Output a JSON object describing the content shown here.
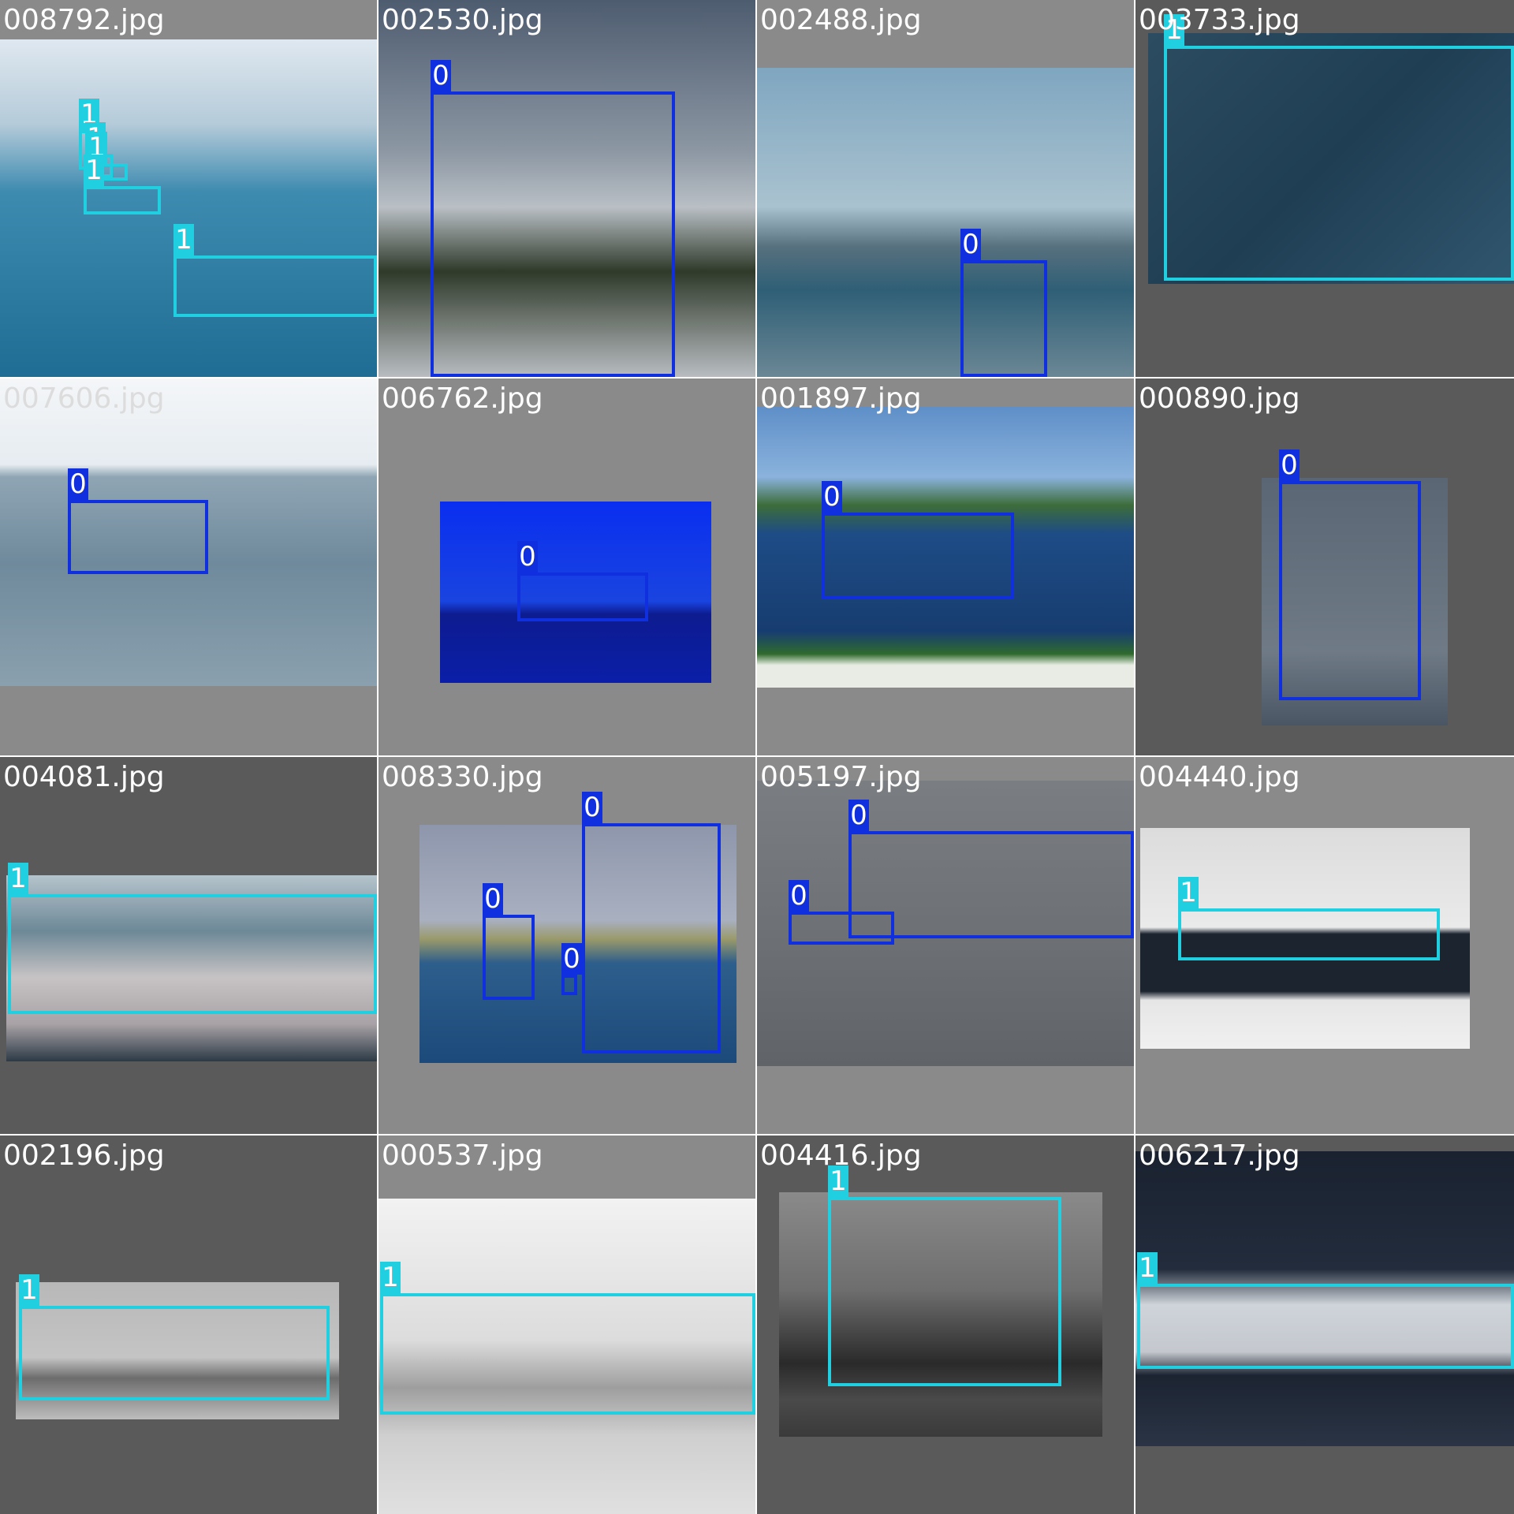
{
  "class_colors": {
    "0": "#1030e0",
    "1": "#20d0e0"
  },
  "tiles": [
    {
      "filename": "008792.jpg",
      "boxes": [
        {
          "cls": "1"
        },
        {
          "cls": "1"
        },
        {
          "cls": "1"
        },
        {
          "cls": "1"
        },
        {
          "cls": "1"
        }
      ]
    },
    {
      "filename": "002530.jpg",
      "boxes": [
        {
          "cls": "0"
        }
      ]
    },
    {
      "filename": "002488.jpg",
      "boxes": [
        {
          "cls": "0"
        }
      ]
    },
    {
      "filename": "003733.jpg",
      "boxes": [
        {
          "cls": "1"
        }
      ]
    },
    {
      "filename": "007606.jpg",
      "boxes": [
        {
          "cls": "0"
        }
      ]
    },
    {
      "filename": "006762.jpg",
      "boxes": [
        {
          "cls": "0"
        }
      ]
    },
    {
      "filename": "001897.jpg",
      "boxes": [
        {
          "cls": "0"
        }
      ]
    },
    {
      "filename": "000890.jpg",
      "boxes": [
        {
          "cls": "0"
        }
      ]
    },
    {
      "filename": "004081.jpg",
      "boxes": [
        {
          "cls": "1"
        }
      ]
    },
    {
      "filename": "008330.jpg",
      "boxes": [
        {
          "cls": "0"
        },
        {
          "cls": "0"
        },
        {
          "cls": "0"
        }
      ]
    },
    {
      "filename": "005197.jpg",
      "boxes": [
        {
          "cls": "0"
        },
        {
          "cls": "0"
        }
      ]
    },
    {
      "filename": "004440.jpg",
      "boxes": [
        {
          "cls": "1"
        }
      ]
    },
    {
      "filename": "002196.jpg",
      "boxes": [
        {
          "cls": "1"
        }
      ]
    },
    {
      "filename": "000537.jpg",
      "boxes": [
        {
          "cls": "1"
        }
      ]
    },
    {
      "filename": "004416.jpg",
      "boxes": [
        {
          "cls": "1"
        }
      ]
    },
    {
      "filename": "006217.jpg",
      "boxes": [
        {
          "cls": "1"
        }
      ]
    }
  ]
}
